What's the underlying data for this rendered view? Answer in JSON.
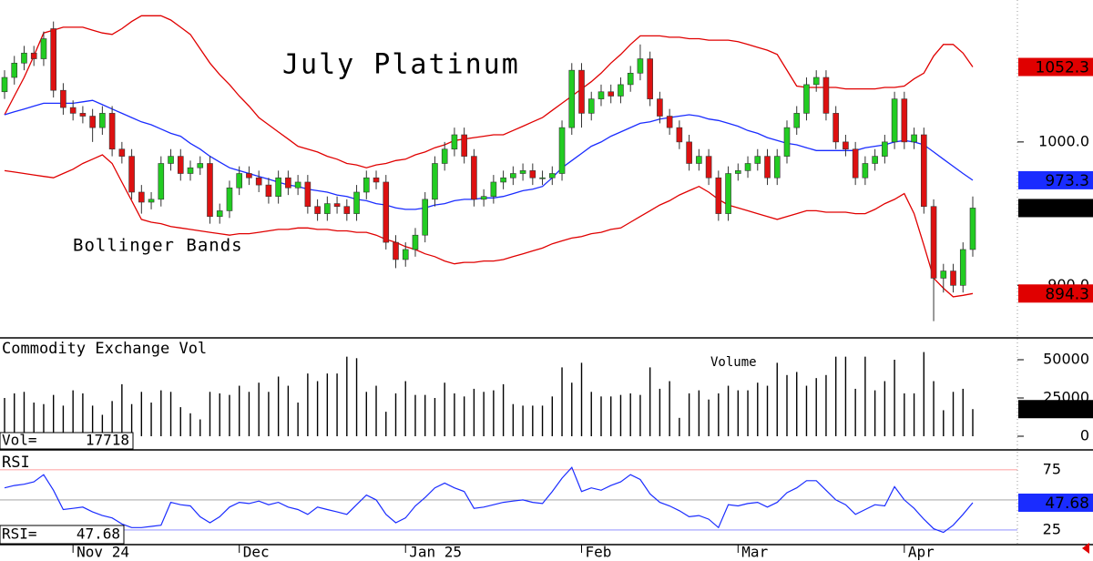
{
  "chart_data": {
    "type": "candlestick",
    "title": "July Platinum",
    "annotation": "Bollinger Bands",
    "categories": [
      null,
      null,
      null,
      null,
      null,
      null,
      null,
      "Nov 24",
      null,
      null,
      null,
      null,
      null,
      null,
      null,
      null,
      null,
      null,
      null,
      null,
      null,
      null,
      null,
      null,
      "Dec",
      null,
      null,
      null,
      null,
      null,
      null,
      null,
      null,
      null,
      null,
      null,
      null,
      null,
      null,
      null,
      null,
      "Jan 25",
      null,
      null,
      null,
      null,
      null,
      null,
      null,
      null,
      null,
      null,
      null,
      null,
      null,
      null,
      null,
      null,
      null,
      "Feb",
      null,
      null,
      null,
      null,
      null,
      null,
      null,
      null,
      null,
      null,
      null,
      null,
      null,
      null,
      null,
      "Mar",
      null,
      null,
      null,
      null,
      null,
      null,
      null,
      null,
      null,
      null,
      null,
      null,
      null,
      null,
      null,
      null,
      "Apr",
      null,
      null,
      null,
      null,
      null,
      null,
      null
    ],
    "candles": {
      "open": [
        1035,
        1045,
        1055,
        1062,
        1058,
        1079,
        1036,
        1024,
        1020,
        1018,
        1010,
        1020,
        995,
        990,
        965,
        958,
        960,
        985,
        990,
        978,
        982,
        985,
        948,
        952,
        968,
        978,
        975,
        970,
        962,
        975,
        968,
        972,
        955,
        950,
        957,
        955,
        950,
        965,
        975,
        972,
        930,
        918,
        925,
        935,
        960,
        985,
        995,
        1005,
        990,
        960,
        962,
        972,
        975,
        978,
        980,
        975,
        975,
        978,
        1010,
        1050,
        1020,
        1030,
        1035,
        1032,
        1040,
        1048,
        1058,
        1030,
        1018,
        1010,
        1000,
        985,
        990,
        975,
        950,
        978,
        980,
        985,
        990,
        975,
        990,
        1010,
        1020,
        1040,
        1045,
        1020,
        1000,
        995,
        975,
        985,
        990,
        1000,
        1030,
        1000,
        1005,
        955,
        905,
        910,
        900,
        925
      ],
      "high": [
        1050,
        1060,
        1067,
        1067,
        1077,
        1084,
        1041,
        1029,
        1025,
        1023,
        1025,
        1025,
        1000,
        995,
        970,
        965,
        990,
        995,
        995,
        987,
        990,
        990,
        957,
        973,
        983,
        983,
        980,
        975,
        980,
        980,
        977,
        977,
        960,
        962,
        962,
        960,
        970,
        980,
        980,
        977,
        935,
        930,
        940,
        965,
        990,
        1000,
        1010,
        1010,
        995,
        967,
        977,
        980,
        983,
        985,
        985,
        980,
        983,
        1015,
        1055,
        1055,
        1035,
        1040,
        1040,
        1045,
        1053,
        1068,
        1063,
        1035,
        1023,
        1015,
        1005,
        995,
        995,
        980,
        983,
        985,
        990,
        995,
        995,
        995,
        1015,
        1025,
        1045,
        1050,
        1050,
        1025,
        1005,
        1000,
        990,
        995,
        1005,
        1035,
        1035,
        1010,
        1010,
        960,
        915,
        915,
        930,
        962
      ],
      "low": [
        1030,
        1040,
        1050,
        1053,
        1053,
        1031,
        1019,
        1015,
        1013,
        1000,
        1005,
        990,
        985,
        960,
        950,
        953,
        955,
        980,
        973,
        973,
        977,
        943,
        943,
        947,
        963,
        970,
        965,
        957,
        957,
        963,
        963,
        950,
        945,
        945,
        950,
        945,
        945,
        960,
        967,
        925,
        912,
        913,
        920,
        930,
        955,
        980,
        990,
        985,
        955,
        955,
        957,
        967,
        970,
        973,
        970,
        970,
        970,
        973,
        1005,
        1010,
        1015,
        1025,
        1027,
        1027,
        1035,
        1043,
        1025,
        1013,
        1005,
        995,
        980,
        980,
        970,
        945,
        945,
        973,
        975,
        980,
        970,
        970,
        985,
        1005,
        1015,
        1035,
        1015,
        995,
        990,
        970,
        970,
        980,
        985,
        995,
        995,
        995,
        950,
        875,
        895,
        895,
        895,
        920
      ],
      "close": [
        1045,
        1055,
        1062,
        1058,
        1072,
        1036,
        1024,
        1020,
        1018,
        1010,
        1020,
        995,
        990,
        965,
        958,
        960,
        985,
        990,
        978,
        982,
        985,
        948,
        952,
        968,
        978,
        975,
        970,
        962,
        975,
        968,
        972,
        955,
        950,
        957,
        955,
        950,
        965,
        975,
        972,
        930,
        918,
        925,
        935,
        960,
        985,
        995,
        1005,
        990,
        960,
        962,
        972,
        975,
        978,
        980,
        975,
        975,
        978,
        1010,
        1050,
        1020,
        1030,
        1035,
        1032,
        1040,
        1048,
        1058,
        1030,
        1018,
        1010,
        1000,
        985,
        990,
        975,
        950,
        978,
        980,
        985,
        990,
        975,
        990,
        1010,
        1020,
        1040,
        1045,
        1020,
        1000,
        995,
        975,
        985,
        990,
        1000,
        1030,
        1000,
        1005,
        955,
        905,
        910,
        900,
        925,
        953.9
      ]
    },
    "bands": {
      "upper": [
        1019,
        1032,
        1045,
        1060,
        1076,
        1078,
        1080,
        1080,
        1080,
        1078,
        1076,
        1075,
        1079,
        1084,
        1088,
        1088,
        1088,
        1085,
        1080,
        1075,
        1065,
        1055,
        1047,
        1040,
        1032,
        1025,
        1017,
        1012,
        1007,
        1002,
        997,
        995,
        993,
        990,
        988,
        985,
        984,
        982,
        984,
        985,
        987,
        988,
        991,
        993,
        996,
        998,
        1001,
        1002,
        1003,
        1004,
        1005,
        1005,
        1008,
        1011,
        1014,
        1017,
        1022,
        1027,
        1032,
        1037,
        1042,
        1048,
        1055,
        1061,
        1068,
        1074,
        1074,
        1074,
        1073,
        1073,
        1072,
        1072,
        1071,
        1071,
        1071,
        1070,
        1068,
        1066,
        1064,
        1061,
        1050,
        1039,
        1038,
        1038,
        1038,
        1038,
        1037,
        1037,
        1037,
        1037,
        1038,
        1038,
        1039,
        1044,
        1048,
        1060,
        1068,
        1068,
        1062,
        1052.3
      ],
      "middle": [
        1019,
        1021,
        1023,
        1025,
        1027,
        1027,
        1027,
        1027,
        1028,
        1029,
        1026,
        1023,
        1020,
        1017,
        1014,
        1012,
        1009,
        1006,
        1004,
        999,
        995,
        990,
        986,
        982,
        980,
        978,
        976,
        974,
        972,
        970,
        969,
        967,
        966,
        965,
        963,
        962,
        960,
        959,
        957,
        956,
        954,
        953,
        953,
        954,
        956,
        957,
        959,
        960,
        960,
        961,
        961,
        962,
        964,
        966,
        967,
        969,
        975,
        982,
        987,
        992,
        997,
        1000,
        1004,
        1007,
        1010,
        1013,
        1014,
        1016,
        1017,
        1018,
        1019,
        1018,
        1016,
        1015,
        1013,
        1011,
        1008,
        1006,
        1003,
        1001,
        999,
        998,
        996,
        994,
        994,
        994,
        994,
        994,
        996,
        997,
        998,
        1000,
        1001,
        1000,
        998,
        993,
        988,
        983,
        978,
        973.3
      ],
      "lower": [
        980,
        979,
        978,
        977,
        976,
        975,
        978,
        981,
        985,
        988,
        991,
        985,
        972,
        959,
        946,
        944,
        943,
        941,
        940,
        939,
        938,
        937,
        936,
        935,
        936,
        936,
        937,
        938,
        939,
        939,
        940,
        940,
        939,
        939,
        938,
        938,
        937,
        937,
        935,
        932,
        930,
        927,
        925,
        922,
        920,
        917,
        915,
        916,
        916,
        917,
        917,
        918,
        920,
        922,
        924,
        926,
        929,
        931,
        933,
        934,
        936,
        937,
        939,
        940,
        944,
        948,
        952,
        956,
        959,
        963,
        966,
        969,
        965,
        960,
        956,
        954,
        952,
        950,
        948,
        946,
        948,
        950,
        952,
        952,
        951,
        951,
        951,
        950,
        950,
        953,
        957,
        960,
        964,
        950,
        928,
        905,
        898,
        892,
        893,
        894.3
      ]
    },
    "ylim": [
      864,
      1099
    ],
    "yticks": [
      {
        "value": 900,
        "label": "900.0"
      },
      {
        "value": 1000,
        "label": "1000.0"
      }
    ],
    "up_color": "#22cc22",
    "down_color": "#dd1111",
    "band_color": "#e00000",
    "middle_color": "#1a2cff",
    "close_badge_color": "#000000",
    "volume": {
      "title": "Commodity Exchange Vol",
      "series_label": "Volume",
      "readout_label": "Vol=",
      "color": "#000000",
      "values": [
        25000,
        28000,
        29000,
        22000,
        21000,
        27000,
        20000,
        30000,
        28000,
        20000,
        14000,
        23000,
        34000,
        21000,
        29000,
        22000,
        30000,
        29000,
        19000,
        15000,
        11000,
        29000,
        28000,
        27000,
        33000,
        29000,
        35000,
        29000,
        39000,
        33000,
        22000,
        41000,
        36000,
        41000,
        41000,
        52000,
        51000,
        29000,
        33000,
        16000,
        28000,
        36000,
        27000,
        27000,
        25000,
        35000,
        28000,
        26000,
        31000,
        29000,
        30000,
        34000,
        21000,
        20000,
        20000,
        20000,
        26000,
        45000,
        35000,
        48000,
        29000,
        26000,
        26000,
        27000,
        28000,
        27000,
        45000,
        31000,
        36000,
        12000,
        28000,
        30000,
        24000,
        28000,
        33000,
        30000,
        30000,
        35000,
        33000,
        48000,
        40000,
        42000,
        33000,
        38000,
        40000,
        52000,
        52000,
        31000,
        52000,
        30000,
        36000,
        50000,
        28000,
        28000,
        55000,
        36000,
        17000,
        29000,
        31000,
        17718
      ],
      "ylim": [
        -8333,
        63690
      ],
      "yticks": [
        0,
        25000,
        50000
      ]
    },
    "rsi": {
      "title": "RSI",
      "readout_label": "RSI=",
      "color": "#1a2cff",
      "values": [
        60,
        62,
        63,
        65,
        71,
        58,
        42,
        43,
        44,
        40,
        37,
        35,
        30,
        27,
        27,
        28,
        29,
        48,
        46,
        45,
        36,
        31,
        36,
        44,
        48,
        47,
        49,
        46,
        48,
        44,
        42,
        38,
        44,
        42,
        40,
        38,
        46,
        54,
        50,
        38,
        31,
        35,
        45,
        52,
        60,
        64,
        60,
        57,
        43,
        44,
        46,
        48,
        49,
        50,
        48,
        47,
        57,
        68,
        77,
        57,
        60,
        58,
        62,
        65,
        71,
        67,
        55,
        48,
        45,
        41,
        36,
        37,
        34,
        27,
        46,
        45,
        47,
        48,
        44,
        48,
        56,
        60,
        66,
        66,
        58,
        50,
        46,
        38,
        42,
        46,
        45,
        61,
        50,
        43,
        34,
        26,
        23,
        29,
        38,
        47.68
      ],
      "ylim": [
        13.6,
        89.3
      ],
      "yticks": [
        25,
        75
      ],
      "midline": 50
    }
  }
}
